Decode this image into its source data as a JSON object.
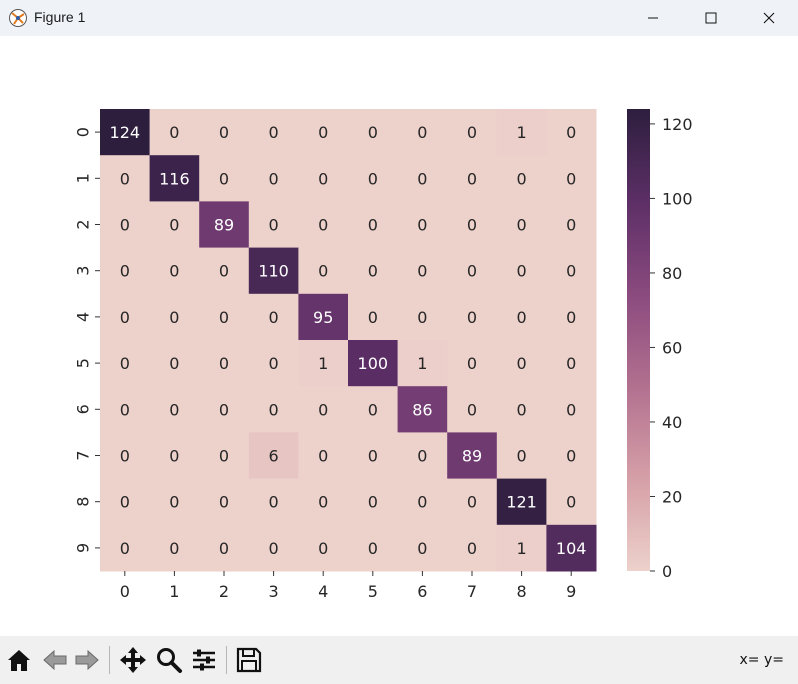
{
  "window": {
    "title": "Figure 1",
    "controls": [
      "minimize",
      "maximize",
      "close"
    ]
  },
  "toolbar": {
    "buttons": [
      "home-icon",
      "back-icon",
      "forward-icon",
      "pan-icon",
      "zoom-icon",
      "configure-subplots-icon",
      "save-icon"
    ],
    "coords_text": "x= y="
  },
  "chart_data": {
    "type": "heatmap",
    "title": "",
    "xlabel": "",
    "ylabel": "",
    "x_categories": [
      "0",
      "1",
      "2",
      "3",
      "4",
      "5",
      "6",
      "7",
      "8",
      "9"
    ],
    "y_categories": [
      "0",
      "1",
      "2",
      "3",
      "4",
      "5",
      "6",
      "7",
      "8",
      "9"
    ],
    "values": [
      [
        124,
        0,
        0,
        0,
        0,
        0,
        0,
        0,
        1,
        0
      ],
      [
        0,
        116,
        0,
        0,
        0,
        0,
        0,
        0,
        0,
        0
      ],
      [
        0,
        0,
        89,
        0,
        0,
        0,
        0,
        0,
        0,
        0
      ],
      [
        0,
        0,
        0,
        110,
        0,
        0,
        0,
        0,
        0,
        0
      ],
      [
        0,
        0,
        0,
        0,
        95,
        0,
        0,
        0,
        0,
        0
      ],
      [
        0,
        0,
        0,
        0,
        1,
        100,
        1,
        0,
        0,
        0
      ],
      [
        0,
        0,
        0,
        0,
        0,
        0,
        86,
        0,
        0,
        0
      ],
      [
        0,
        0,
        0,
        6,
        0,
        0,
        0,
        89,
        0,
        0
      ],
      [
        0,
        0,
        0,
        0,
        0,
        0,
        0,
        0,
        121,
        0
      ],
      [
        0,
        0,
        0,
        0,
        0,
        0,
        0,
        0,
        1,
        104
      ]
    ],
    "colorbar": {
      "min": 0,
      "max": 124,
      "ticks": [
        0,
        20,
        40,
        60,
        80,
        100,
        120
      ],
      "colormap": [
        "#edd1cb",
        "#d59fa7",
        "#b2708f",
        "#8a4a7e",
        "#5c2f66",
        "#2d1e3e"
      ]
    },
    "annotations": true
  }
}
